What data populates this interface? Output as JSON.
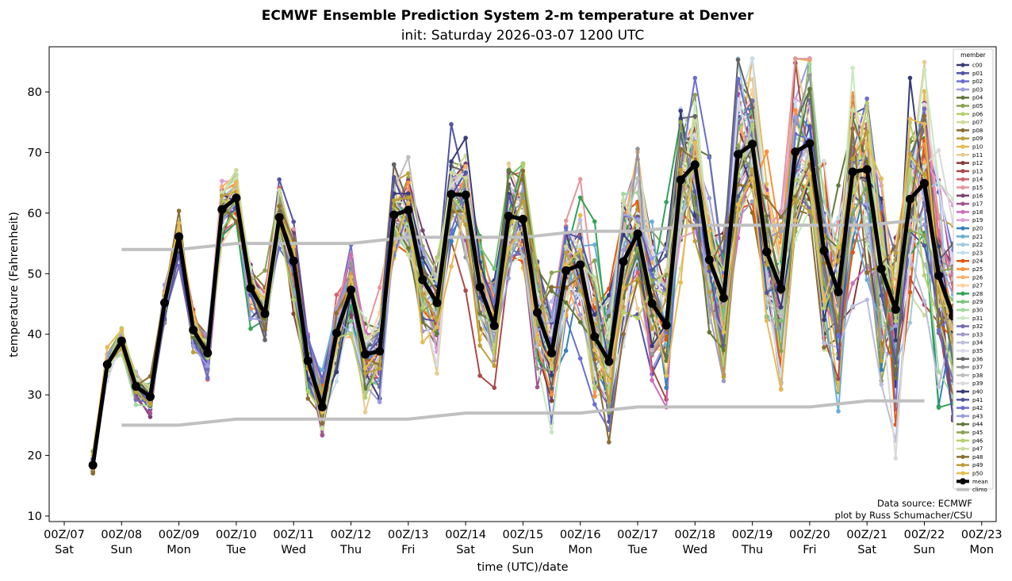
{
  "chart_data": {
    "type": "line",
    "title": "ECMWF Ensemble Prediction System 2-m temperature at Denver",
    "subtitle": "init: Saturday 2026-03-07 1200 UTC",
    "xlabel": "time (UTC)/date",
    "ylabel": "temperature (Fahrenheit)",
    "x_unit": "days since 00Z/07",
    "xlim": [
      -0.2,
      16.1
    ],
    "ylim": [
      9.2,
      87.5
    ],
    "y_ticks": [
      10,
      20,
      30,
      40,
      50,
      60,
      70,
      80
    ],
    "x_ticks": [
      {
        "value": 0,
        "line1": "00Z/07",
        "line2": "Sat"
      },
      {
        "value": 1,
        "line1": "00Z/08",
        "line2": "Sun"
      },
      {
        "value": 2,
        "line1": "00Z/09",
        "line2": "Mon"
      },
      {
        "value": 3,
        "line1": "00Z/10",
        "line2": "Tue"
      },
      {
        "value": 4,
        "line1": "00Z/11",
        "line2": "Wed"
      },
      {
        "value": 5,
        "line1": "00Z/12",
        "line2": "Thu"
      },
      {
        "value": 6,
        "line1": "00Z/13",
        "line2": "Fri"
      },
      {
        "value": 7,
        "line1": "00Z/14",
        "line2": "Sat"
      },
      {
        "value": 8,
        "line1": "00Z/15",
        "line2": "Sun"
      },
      {
        "value": 9,
        "line1": "00Z/16",
        "line2": "Mon"
      },
      {
        "value": 10,
        "line1": "00Z/17",
        "line2": "Tue"
      },
      {
        "value": 11,
        "line1": "00Z/18",
        "line2": "Wed"
      },
      {
        "value": 12,
        "line1": "00Z/19",
        "line2": "Thu"
      },
      {
        "value": 13,
        "line1": "00Z/20",
        "line2": "Fri"
      },
      {
        "value": 14,
        "line1": "00Z/21",
        "line2": "Sat"
      },
      {
        "value": 15,
        "line1": "00Z/22",
        "line2": "Sun"
      },
      {
        "value": 16,
        "line1": "00Z/23",
        "line2": "Mon"
      }
    ],
    "time_step_days": 0.25,
    "time_start_days": 0.5,
    "mean": {
      "name": "mean",
      "color": "#000000",
      "values": [
        18.4,
        35.0,
        38.9,
        31.4,
        29.7,
        45.2,
        56.1,
        40.7,
        36.9,
        60.6,
        62.5,
        47.6,
        43.4,
        59.3,
        52.1,
        35.6,
        28.0,
        40.2,
        47.3,
        36.7,
        37.2,
        59.7,
        60.5,
        49.0,
        45.2,
        63.1,
        63.0,
        47.8,
        41.4,
        59.5,
        59.0,
        43.6,
        36.9,
        50.5,
        51.5,
        39.6,
        35.5,
        52.0,
        56.6,
        45.1,
        41.5,
        65.5,
        68.0,
        52.3,
        46.0,
        69.7,
        71.4,
        53.6,
        47.5,
        70.1,
        71.5,
        53.8,
        47.0,
        66.8,
        67.2,
        50.8,
        44.1,
        62.3,
        64.9,
        49.7,
        43.0
      ]
    },
    "climo": {
      "name": "climo",
      "color": "#c0c0c0",
      "x": [
        1,
        2,
        3,
        4,
        5,
        6,
        7,
        8,
        9,
        10,
        11,
        12,
        13,
        14,
        15
      ],
      "upper": [
        54,
        54,
        55,
        55,
        55,
        56,
        56,
        56,
        57,
        57,
        58,
        58,
        58,
        58,
        59
      ],
      "lower": [
        25,
        25,
        26,
        26,
        26,
        26,
        27,
        27,
        27,
        28,
        28,
        28,
        28,
        29,
        29
      ]
    },
    "members": [
      {
        "name": "c00",
        "color": "#393b79"
      },
      {
        "name": "p01",
        "color": "#5254a3"
      },
      {
        "name": "p02",
        "color": "#6b6ecf"
      },
      {
        "name": "p03",
        "color": "#9c9ede"
      },
      {
        "name": "p04",
        "color": "#637939"
      },
      {
        "name": "p05",
        "color": "#8ca252"
      },
      {
        "name": "p06",
        "color": "#b5cf6b"
      },
      {
        "name": "p07",
        "color": "#cedb9c"
      },
      {
        "name": "p08",
        "color": "#8c6d31"
      },
      {
        "name": "p09",
        "color": "#bd9e39"
      },
      {
        "name": "p10",
        "color": "#e7ba52"
      },
      {
        "name": "p11",
        "color": "#e7cb94"
      },
      {
        "name": "p12",
        "color": "#843c39"
      },
      {
        "name": "p13",
        "color": "#ad494a"
      },
      {
        "name": "p14",
        "color": "#d6616b"
      },
      {
        "name": "p15",
        "color": "#e7969c"
      },
      {
        "name": "p16",
        "color": "#7b4173"
      },
      {
        "name": "p17",
        "color": "#a55194"
      },
      {
        "name": "p18",
        "color": "#ce6dbd"
      },
      {
        "name": "p19",
        "color": "#de9ed6"
      },
      {
        "name": "p20",
        "color": "#3182bd"
      },
      {
        "name": "p21",
        "color": "#6baed6"
      },
      {
        "name": "p22",
        "color": "#9ecae1"
      },
      {
        "name": "p23",
        "color": "#c6dbef"
      },
      {
        "name": "p24",
        "color": "#e6550d"
      },
      {
        "name": "p25",
        "color": "#fd8d3c"
      },
      {
        "name": "p26",
        "color": "#fdae6b"
      },
      {
        "name": "p27",
        "color": "#fdd0a2"
      },
      {
        "name": "p28",
        "color": "#31a354"
      },
      {
        "name": "p29",
        "color": "#74c476"
      },
      {
        "name": "p30",
        "color": "#a1d99b"
      },
      {
        "name": "p31",
        "color": "#c7e9c0"
      },
      {
        "name": "p32",
        "color": "#756bb1"
      },
      {
        "name": "p33",
        "color": "#9e9ac8"
      },
      {
        "name": "p34",
        "color": "#bcbddc"
      },
      {
        "name": "p35",
        "color": "#dadaeb"
      },
      {
        "name": "p36",
        "color": "#636363"
      },
      {
        "name": "p37",
        "color": "#969696"
      },
      {
        "name": "p38",
        "color": "#bdbdbd"
      },
      {
        "name": "p39",
        "color": "#d9d9d9"
      },
      {
        "name": "p40",
        "color": "#393b79"
      },
      {
        "name": "p41",
        "color": "#5254a3"
      },
      {
        "name": "p42",
        "color": "#6b6ecf"
      },
      {
        "name": "p43",
        "color": "#9c9ede"
      },
      {
        "name": "p44",
        "color": "#637939"
      },
      {
        "name": "p45",
        "color": "#8ca252"
      },
      {
        "name": "p46",
        "color": "#b5cf6b"
      },
      {
        "name": "p47",
        "color": "#cedb9c"
      },
      {
        "name": "p48",
        "color": "#8c6d31"
      },
      {
        "name": "p49",
        "color": "#bd9e39"
      },
      {
        "name": "p50",
        "color": "#e7ba52"
      }
    ],
    "member_spread_note": "individual member traces scatter around the mean; spread grows with lead time",
    "legend": {
      "title": "member",
      "placement": "right",
      "extra_entries": [
        "mean",
        "climo"
      ]
    },
    "annotations": [
      "Data source: ECMWF",
      "plot by Russ Schumacher/CSU"
    ],
    "grid": false
  }
}
